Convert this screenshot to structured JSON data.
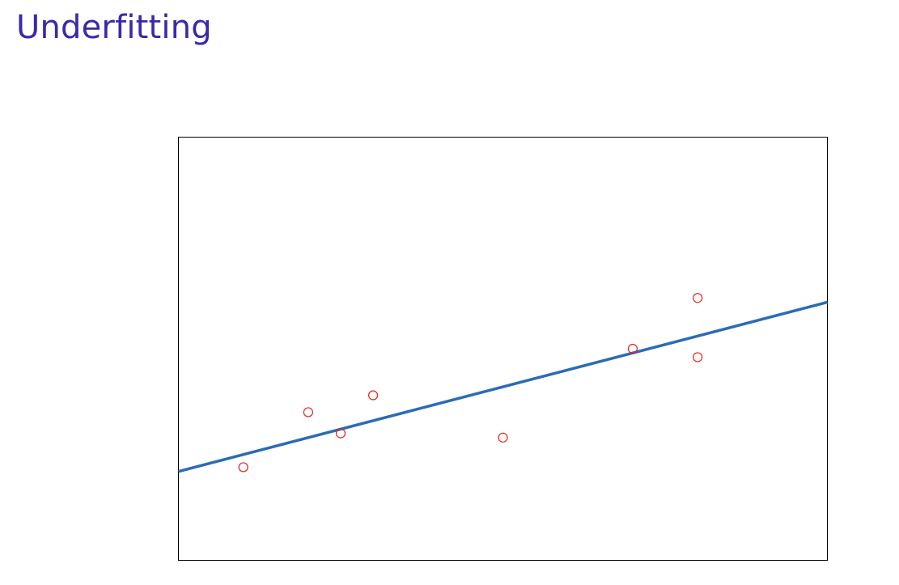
{
  "slide": {
    "title": "Underfitting",
    "title_color": "#3a2aa8"
  },
  "chart_data": {
    "type": "scatter",
    "title": "",
    "xlabel": "",
    "ylabel": "",
    "xlim": [
      0,
      10
    ],
    "ylim": [
      0,
      10
    ],
    "grid": false,
    "axes_ticks": false,
    "points": {
      "x": [
        1.0,
        2.0,
        2.5,
        3.0,
        5.0,
        7.0,
        8.0,
        8.0
      ],
      "y": [
        2.2,
        3.5,
        3.0,
        3.9,
        2.9,
        5.0,
        6.2,
        4.8
      ],
      "marker": "hollow-circle",
      "color": "#e8221b"
    },
    "fit_line": {
      "kind": "linear",
      "x": [
        0,
        10
      ],
      "y": [
        2.1,
        6.1
      ],
      "color": "#2a6cb5"
    }
  }
}
